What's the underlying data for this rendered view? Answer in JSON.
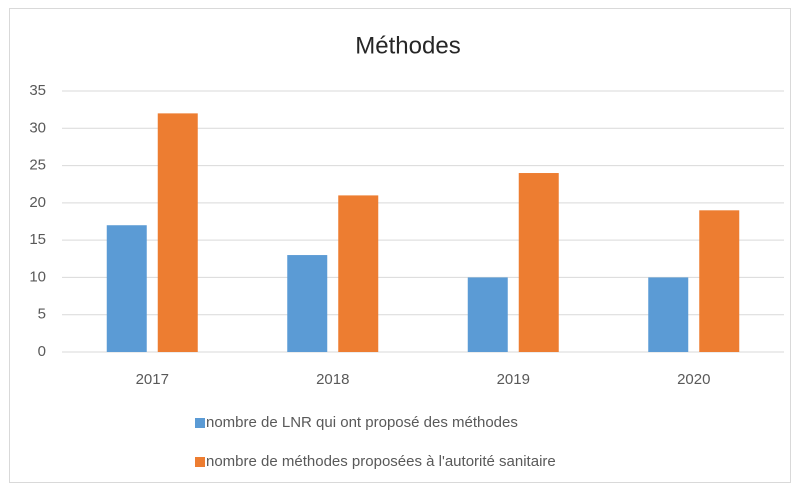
{
  "chart_data": {
    "type": "bar",
    "title": "Méthodes",
    "categories": [
      "2017",
      "2018",
      "2019",
      "2020"
    ],
    "series": [
      {
        "name": "nombre de LNR qui ont proposé des méthodes",
        "color": "#5b9bd5",
        "values": [
          17,
          13,
          10,
          10
        ]
      },
      {
        "name": "nombre de méthodes proposées à l'autorité sanitaire",
        "color": "#ed7d31",
        "values": [
          32,
          21,
          24,
          19
        ]
      }
    ],
    "ylim": [
      0,
      35
    ],
    "yticks": [
      0,
      5,
      10,
      15,
      20,
      25,
      30,
      35
    ],
    "grid": true,
    "legend": "bottom"
  }
}
